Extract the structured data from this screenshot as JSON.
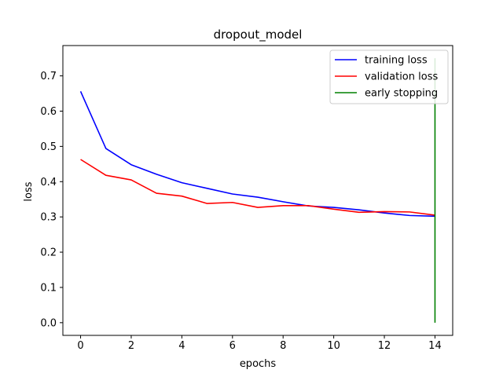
{
  "chart_data": {
    "type": "line",
    "title": "dropout_model",
    "xlabel": "epochs",
    "ylabel": "loss",
    "xlim": [
      -0.7,
      14.7
    ],
    "ylim": [
      -0.036,
      0.786
    ],
    "x_ticks": [
      0,
      2,
      4,
      6,
      8,
      10,
      12,
      14
    ],
    "y_ticks": [
      0.0,
      0.1,
      0.2,
      0.3,
      0.4,
      0.5,
      0.6,
      0.7
    ],
    "x_tick_labels": [
      "0",
      "2",
      "4",
      "6",
      "8",
      "10",
      "12",
      "14"
    ],
    "y_tick_labels": [
      "0.0",
      "0.1",
      "0.2",
      "0.3",
      "0.4",
      "0.5",
      "0.6",
      "0.7"
    ],
    "grid": false,
    "legend_position": "top-right",
    "x": [
      0,
      1,
      2,
      3,
      4,
      5,
      6,
      7,
      8,
      9,
      10,
      11,
      12,
      13,
      14
    ],
    "series": [
      {
        "name": "training loss",
        "color": "#0000ff",
        "values": [
          0.656,
          0.494,
          0.448,
          0.421,
          0.397,
          0.381,
          0.365,
          0.356,
          0.343,
          0.331,
          0.327,
          0.32,
          0.311,
          0.304,
          0.302
        ]
      },
      {
        "name": "validation loss",
        "color": "#ff0000",
        "values": [
          0.463,
          0.418,
          0.405,
          0.367,
          0.359,
          0.338,
          0.341,
          0.327,
          0.332,
          0.332,
          0.322,
          0.313,
          0.315,
          0.314,
          0.305
        ]
      }
    ],
    "vertical_lines": [
      {
        "name": "early stopping",
        "color": "#008000",
        "x": 14,
        "y_from": 0.0,
        "y_to": 0.75
      }
    ]
  }
}
